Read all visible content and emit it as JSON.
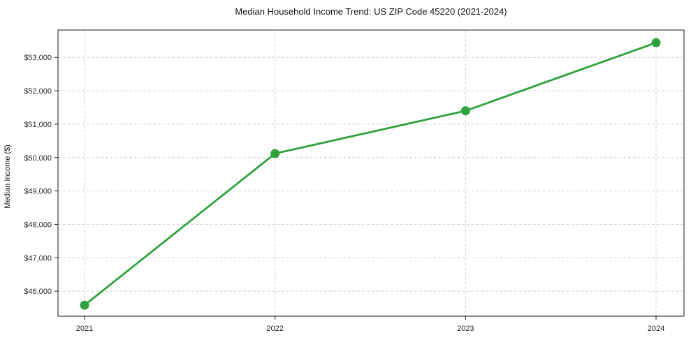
{
  "title": "Median Household Income Trend: US ZIP Code 45220 (2021-2024)",
  "chart_data": {
    "type": "line",
    "title": "Median Household Income Trend: US ZIP Code 45220 (2021-2024)",
    "ylabel": "Median Income ($)",
    "categories": [
      "2021",
      "2022",
      "2023",
      "2024"
    ],
    "values": [
      45580,
      50120,
      51400,
      53440
    ],
    "yticks": [
      46000,
      47000,
      48000,
      49000,
      50000,
      51000,
      52000,
      53000
    ],
    "ytick_labels": [
      "$46,000",
      "$47,000",
      "$48,000",
      "$49,000",
      "$50,000",
      "$51,000",
      "$52,000",
      "$53,000"
    ],
    "ylim": [
      45250,
      53820
    ],
    "grid": true,
    "grid_style": "dashed",
    "legend": false,
    "line_color": "#2ea23c",
    "marker": "circle",
    "grid_color": "#cfcfcf",
    "spine_color": "#1a1a1a",
    "background": "#ffffff"
  }
}
